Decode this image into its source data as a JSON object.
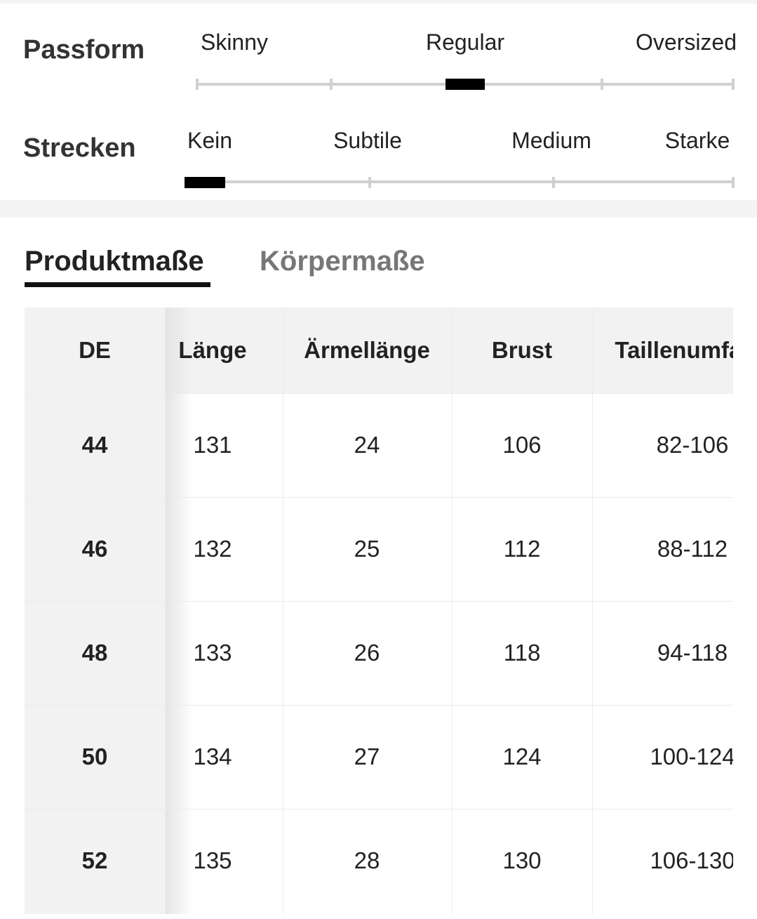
{
  "fit": [
    {
      "label": "Passform",
      "options": [
        "Skinny",
        "Regular",
        "Oversized"
      ]
    },
    {
      "label": "Strecken",
      "options": [
        "Kein",
        "Subtile",
        "Medium",
        "Starke"
      ]
    }
  ],
  "tabs": [
    "Produktmaße",
    "Körpermaße"
  ],
  "table": {
    "header": [
      "DE",
      "Länge",
      "Ärmellänge",
      "Brust",
      "Taillenumfang"
    ],
    "rows": [
      [
        "44",
        "131",
        "24",
        "106",
        "82-106"
      ],
      [
        "46",
        "132",
        "25",
        "112",
        "88-112"
      ],
      [
        "48",
        "133",
        "26",
        "118",
        "94-118"
      ],
      [
        "50",
        "134",
        "27",
        "124",
        "100-124"
      ],
      [
        "52",
        "135",
        "28",
        "130",
        "106-130"
      ]
    ]
  }
}
